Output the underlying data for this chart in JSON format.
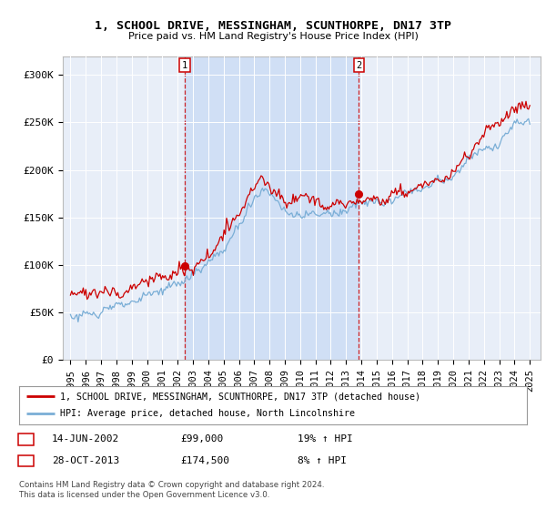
{
  "title": "1, SCHOOL DRIVE, MESSINGHAM, SCUNTHORPE, DN17 3TP",
  "subtitle": "Price paid vs. HM Land Registry's House Price Index (HPI)",
  "legend_line1": "1, SCHOOL DRIVE, MESSINGHAM, SCUNTHORPE, DN17 3TP (detached house)",
  "legend_line2": "HPI: Average price, detached house, North Lincolnshire",
  "sale1_date": "14-JUN-2002",
  "sale1_price": "£99,000",
  "sale1_hpi": "19% ↑ HPI",
  "sale2_date": "28-OCT-2013",
  "sale2_price": "£174,500",
  "sale2_hpi": "8% ↑ HPI",
  "footer": "Contains HM Land Registry data © Crown copyright and database right 2024.\nThis data is licensed under the Open Government Licence v3.0.",
  "background_color": "#ffffff",
  "plot_bg_color": "#e8eef8",
  "shade_color": "#d0dff5",
  "red_color": "#cc0000",
  "blue_color": "#7aaed6",
  "sale1_x": 2002.45,
  "sale1_y": 99000,
  "sale2_x": 2013.83,
  "sale2_y": 174500,
  "ylim": [
    0,
    320000
  ],
  "xlim": [
    1994.5,
    2025.7
  ],
  "yticks": [
    0,
    50000,
    100000,
    150000,
    200000,
    250000,
    300000
  ],
  "ytick_labels": [
    "£0",
    "£50K",
    "£100K",
    "£150K",
    "£200K",
    "£250K",
    "£300K"
  ],
  "xticks": [
    1995,
    1996,
    1997,
    1998,
    1999,
    2000,
    2001,
    2002,
    2003,
    2004,
    2005,
    2006,
    2007,
    2008,
    2009,
    2010,
    2011,
    2012,
    2013,
    2014,
    2015,
    2016,
    2017,
    2018,
    2019,
    2020,
    2021,
    2022,
    2023,
    2024,
    2025
  ]
}
